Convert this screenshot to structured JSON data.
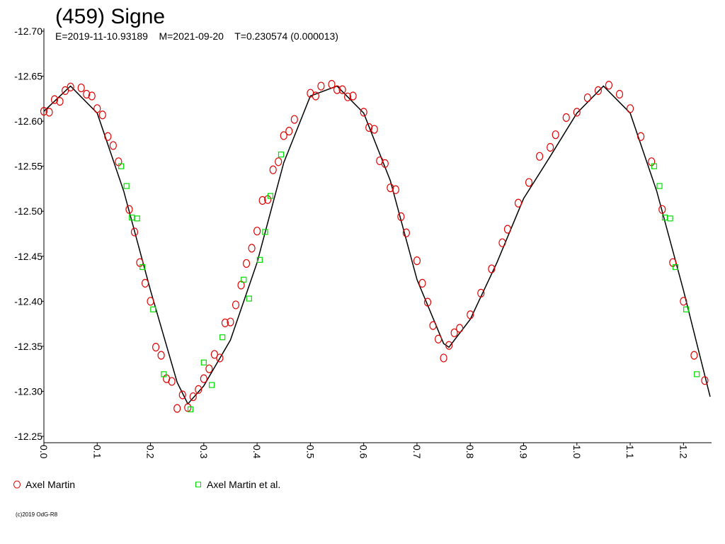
{
  "chart_data": {
    "type": "scatter",
    "title": "(459) Signe",
    "subtitle": "E=2019-11-10.93189    M=2021-09-20    T=0.230574 (0.000013)",
    "footer": "(c)2019 OdG-R8",
    "xlim": [
      0,
      1.25
    ],
    "xticks": [
      {
        "value": 0,
        "label": "0.0"
      },
      0.1,
      0.2,
      0.3,
      0.4,
      0.5,
      0.6,
      0.7,
      0.8,
      0.9,
      {
        "value": 1,
        "label": "1.0"
      },
      1.1,
      1.2
    ],
    "ylim": [
      -12.25,
      -12.7
    ],
    "yticks": [
      {
        "value": -12.7,
        "label": "-12.70"
      },
      -12.65,
      {
        "value": -12.6,
        "label": "-12.60"
      },
      -12.55,
      {
        "value": -12.5,
        "label": "-12.50"
      },
      -12.45,
      {
        "value": -12.4,
        "label": "-12.40"
      },
      -12.35,
      {
        "value": -12.3,
        "label": "-12.30"
      },
      -12.25
    ],
    "model": {
      "color": "#000000",
      "x": [
        0,
        0.05,
        0.1,
        0.15,
        0.2,
        0.25,
        0.27,
        0.3,
        0.35,
        0.4,
        0.45,
        0.5,
        0.55,
        0.6,
        0.65,
        0.7,
        0.75,
        0.76,
        0.8,
        0.85,
        0.9,
        0.95,
        1,
        1.05,
        1.1,
        1.15,
        1.2,
        1.25
      ],
      "values": [
        -12.611,
        -12.639,
        -12.609,
        -12.522,
        -12.412,
        -12.31,
        -12.286,
        -12.306,
        -12.357,
        -12.443,
        -12.554,
        -12.628,
        -12.639,
        -12.609,
        -12.534,
        -12.424,
        -12.353,
        -12.349,
        -12.38,
        -12.443,
        -12.514,
        -12.561,
        -12.609,
        -12.639,
        -12.609,
        -12.522,
        -12.412,
        -12.294
      ]
    },
    "series": [
      {
        "name": "Axel Martin",
        "color": "#e00000",
        "marker": "circle",
        "x": [
          0,
          0.01,
          0.02,
          0.03,
          0.04,
          0.05,
          0.07,
          0.08,
          0.09,
          0.1,
          0.11,
          0.12,
          0.13,
          0.14,
          0.16,
          0.17,
          0.18,
          0.19,
          0.2,
          0.21,
          0.22,
          0.23,
          0.24,
          0.25,
          0.26,
          0.27,
          0.28,
          0.29,
          0.3,
          0.31,
          0.32,
          0.33,
          0.34,
          0.35,
          0.36,
          0.37,
          0.38,
          0.39,
          0.4,
          0.41,
          0.42,
          0.43,
          0.44,
          0.45,
          0.46,
          0.47,
          0.5,
          0.51,
          0.52,
          0.54,
          0.55,
          0.56,
          0.57,
          0.58,
          0.6,
          0.61,
          0.62,
          0.63,
          0.64,
          0.65,
          0.66,
          0.67,
          0.68,
          0.7,
          0.71,
          0.72,
          0.73,
          0.74,
          0.75,
          0.76,
          0.77,
          0.78,
          0.8,
          0.82,
          0.84,
          0.86,
          0.87,
          0.89,
          0.91,
          0.93,
          0.95,
          0.96,
          0.98,
          1,
          1.02,
          1.04,
          1.06,
          1.08,
          1.1,
          1.12,
          1.14,
          1.16,
          1.18,
          1.2,
          1.22,
          1.24
        ],
        "values": [
          -12.611,
          -12.61,
          -12.624,
          -12.622,
          -12.634,
          -12.638,
          -12.637,
          -12.63,
          -12.628,
          -12.614,
          -12.607,
          -12.583,
          -12.573,
          -12.555,
          -12.502,
          -12.477,
          -12.443,
          -12.42,
          -12.4,
          -12.349,
          -12.34,
          -12.314,
          -12.311,
          -12.281,
          -12.296,
          -12.282,
          -12.294,
          -12.302,
          -12.314,
          -12.325,
          -12.341,
          -12.337,
          -12.376,
          -12.377,
          -12.396,
          -12.418,
          -12.442,
          -12.459,
          -12.478,
          -12.512,
          -12.513,
          -12.546,
          -12.555,
          -12.584,
          -12.589,
          -12.602,
          -12.631,
          -12.628,
          -12.639,
          -12.641,
          -12.635,
          -12.635,
          -12.627,
          -12.628,
          -12.61,
          -12.593,
          -12.591,
          -12.556,
          -12.553,
          -12.526,
          -12.524,
          -12.494,
          -12.476,
          -12.445,
          -12.42,
          -12.399,
          -12.373,
          -12.358,
          -12.337,
          -12.351,
          -12.365,
          -12.37,
          -12.385,
          -12.409,
          -12.436,
          -12.465,
          -12.48,
          -12.509,
          -12.532,
          -12.561,
          -12.571,
          -12.585,
          -12.604,
          -12.61,
          -12.626,
          -12.634,
          -12.64,
          -12.63,
          -12.614,
          -12.583,
          -12.555,
          -12.502,
          -12.443,
          -12.4,
          -12.34,
          -12.312
        ]
      },
      {
        "name": "Axel Martin et al.",
        "color": "#00dd00",
        "marker": "square",
        "x": [
          0.145,
          0.155,
          0.165,
          0.175,
          0.185,
          0.205,
          0.225,
          0.275,
          0.3,
          0.315,
          0.335,
          0.375,
          0.385,
          0.405,
          0.415,
          0.425,
          0.445,
          1.145,
          1.155,
          1.165,
          1.175,
          1.185,
          1.205,
          1.225
        ],
        "values": [
          -12.55,
          -12.528,
          -12.493,
          -12.492,
          -12.438,
          -12.391,
          -12.319,
          -12.28,
          -12.332,
          -12.307,
          -12.36,
          -12.424,
          -12.403,
          -12.446,
          -12.477,
          -12.517,
          -12.563,
          -12.55,
          -12.528,
          -12.493,
          -12.492,
          -12.438,
          -12.391,
          -12.319
        ]
      }
    ]
  }
}
